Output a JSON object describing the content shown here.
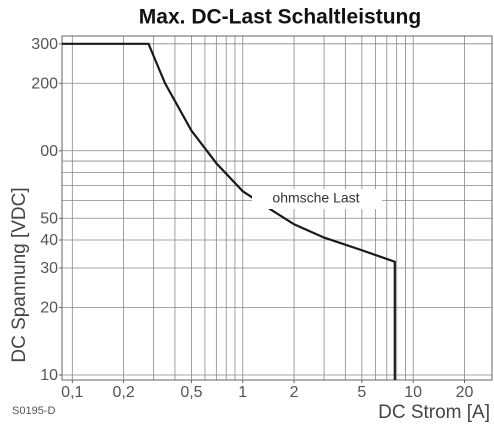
{
  "chart_data": {
    "type": "line",
    "title": "Max. DC-Last Schaltleistung",
    "x_label": "DC Strom [A]",
    "y_label": "DC Spannung [VDC]",
    "code": "S0195-D",
    "log_x": true,
    "log_y": true,
    "grid": true,
    "xlim": [
      0.087,
      29
    ],
    "ylim": [
      9.5,
      325
    ],
    "xticks": [
      {
        "value": 0.1,
        "label": "0,1"
      },
      {
        "value": 0.2,
        "label": "0,2"
      },
      {
        "value": 0.5,
        "label": "0,5"
      },
      1,
      2,
      5,
      10,
      20
    ],
    "yticks": [
      10,
      20,
      30,
      40,
      50,
      {
        "value": 100,
        "label": "00"
      },
      200,
      300
    ],
    "xgrid": [
      0.1,
      0.2,
      0.3,
      0.4,
      0.5,
      0.6,
      0.7,
      0.8,
      0.9,
      1,
      2,
      3,
      4,
      5,
      6,
      7,
      8,
      9,
      10,
      20
    ],
    "ygrid": [
      10,
      20,
      30,
      40,
      50,
      60,
      70,
      80,
      90,
      100,
      200,
      300
    ],
    "series": [
      {
        "name": "ohmsche Last",
        "color": "#1a1a1a",
        "x": [
          0.087,
          0.28,
          0.35,
          0.5,
          0.7,
          1,
          1.5,
          2,
          3,
          5,
          7.8,
          7.8
        ],
        "values": [
          300,
          300,
          200,
          123,
          88,
          66,
          54,
          47,
          41,
          36,
          32,
          9.5
        ]
      }
    ]
  }
}
